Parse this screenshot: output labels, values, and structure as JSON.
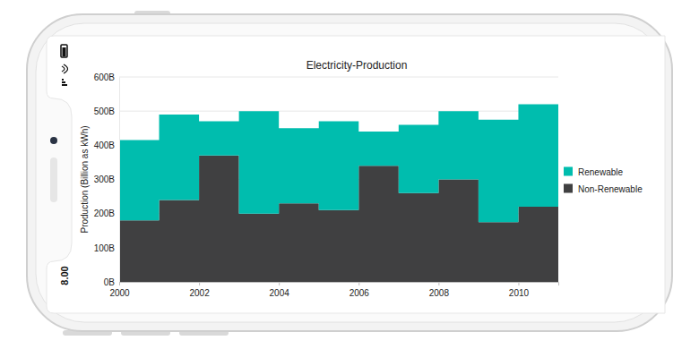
{
  "device": {
    "time": "8.00"
  },
  "chart_data": {
    "type": "area",
    "line_style": "step",
    "stacked": true,
    "title": "Electricity-Production",
    "y_label": "Production (Billion as kWh)",
    "x": [
      2000,
      2001,
      2002,
      2003,
      2004,
      2005,
      2006,
      2007,
      2008,
      2009,
      2010
    ],
    "series": [
      {
        "name": "Renewable",
        "color": "#00bdae",
        "values": [
          235,
          250,
          100,
          300,
          220,
          260,
          100,
          200,
          200,
          300,
          300
        ]
      },
      {
        "name": "Non-Renewable",
        "color": "#404041",
        "values": [
          180,
          240,
          370,
          200,
          230,
          210,
          340,
          260,
          300,
          175,
          220
        ]
      }
    ],
    "xlim": [
      2000,
      2011
    ],
    "xticks": [
      2000,
      2002,
      2004,
      2006,
      2008,
      2010
    ],
    "ylim": [
      0,
      600
    ],
    "yticks": [
      {
        "value": 0,
        "label": "0B"
      },
      {
        "value": 100,
        "label": "100B"
      },
      {
        "value": 200,
        "label": "200B"
      },
      {
        "value": 300,
        "label": "300B"
      },
      {
        "value": 400,
        "label": "400B"
      },
      {
        "value": 500,
        "label": "500B"
      },
      {
        "value": 600,
        "label": "600B"
      }
    ],
    "grid": true,
    "legend": "right"
  }
}
